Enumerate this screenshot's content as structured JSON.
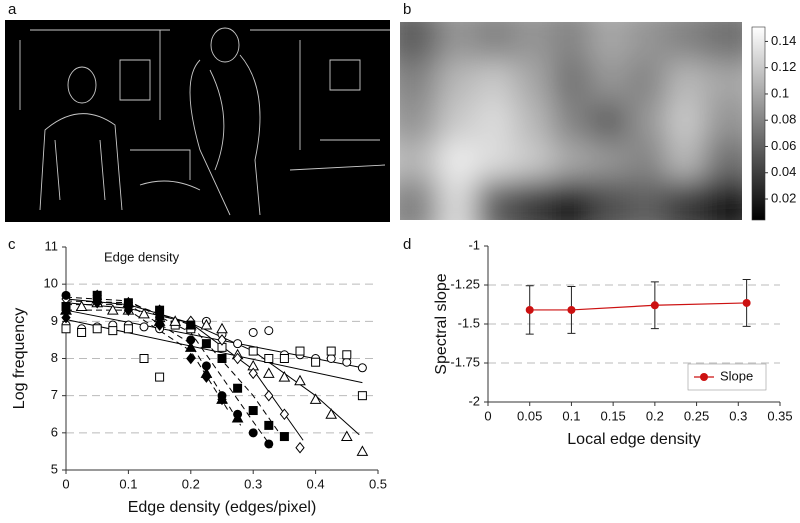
{
  "chart_data": [
    {
      "type": "image",
      "panel": "a"
    },
    {
      "type": "heatmap",
      "panel": "b",
      "values": [
        [
          0.06,
          0.09,
          0.08,
          0.09,
          0.08,
          0.1,
          0.09,
          0.08,
          0.07
        ],
        [
          0.08,
          0.11,
          0.12,
          0.1,
          0.07,
          0.09,
          0.08,
          0.11,
          0.1
        ],
        [
          0.09,
          0.12,
          0.13,
          0.11,
          0.08,
          0.06,
          0.09,
          0.12,
          0.09
        ],
        [
          0.11,
          0.14,
          0.13,
          0.12,
          0.1,
          0.09,
          0.08,
          0.11,
          0.07
        ],
        [
          0.08,
          0.13,
          0.06,
          0.04,
          0.02,
          0.05,
          0.06,
          0.04,
          0.02
        ]
      ],
      "clim": [
        0.004,
        0.151
      ],
      "cticks": [
        0.02,
        0.04,
        0.06,
        0.08,
        0.1,
        0.12,
        0.14
      ]
    },
    {
      "type": "scatter",
      "panel": "c",
      "annotation": "Edge density",
      "xlabel": "Edge density (edges/pixel)",
      "ylabel": "Log frequency",
      "xlim": [
        0,
        0.5
      ],
      "xticks": [
        0,
        0.1,
        0.2,
        0.3,
        0.4,
        0.5
      ],
      "ylim": [
        5,
        11
      ],
      "yticks": [
        5,
        6,
        7,
        8,
        9,
        10,
        11
      ],
      "grid": true,
      "series": [
        {
          "marker": "circle",
          "filled": false,
          "x": [
            0,
            0.025,
            0.05,
            0.075,
            0.1,
            0.125,
            0.15,
            0.2,
            0.225,
            0.25,
            0.275,
            0.3,
            0.325,
            0.35,
            0.375,
            0.4,
            0.425,
            0.45,
            0.475
          ],
          "values": [
            8.9,
            8.8,
            8.85,
            8.9,
            8.9,
            8.85,
            8.8,
            8.9,
            9.0,
            8.65,
            8.4,
            8.7,
            8.75,
            8.1,
            8.1,
            8.0,
            8.0,
            7.9,
            7.75
          ],
          "fit": {
            "x": [
              0,
              0.475
            ],
            "y": [
              9.3,
              7.75
            ]
          }
        },
        {
          "marker": "square",
          "filled": false,
          "x": [
            0,
            0.025,
            0.05,
            0.075,
            0.1,
            0.125,
            0.15,
            0.175,
            0.2,
            0.25,
            0.3,
            0.325,
            0.35,
            0.375,
            0.4,
            0.425,
            0.45,
            0.475
          ],
          "values": [
            8.8,
            8.7,
            8.8,
            8.75,
            8.8,
            8.0,
            7.5,
            8.9,
            8.8,
            8.3,
            8.2,
            8.0,
            8.0,
            8.2,
            7.9,
            8.2,
            8.1,
            7.0
          ],
          "fit": {
            "x": [
              0,
              0.475
            ],
            "y": [
              9.05,
              7.35
            ]
          }
        },
        {
          "marker": "triangle",
          "filled": false,
          "x": [
            0,
            0.025,
            0.05,
            0.075,
            0.1,
            0.125,
            0.15,
            0.175,
            0.2,
            0.225,
            0.25,
            0.275,
            0.3,
            0.325,
            0.35,
            0.375,
            0.4,
            0.425,
            0.45,
            0.475
          ],
          "values": [
            9.3,
            9.4,
            9.5,
            9.3,
            9.3,
            9.2,
            9.1,
            9.0,
            8.9,
            8.9,
            8.8,
            8.1,
            7.8,
            7.6,
            7.5,
            7.4,
            6.9,
            6.5,
            5.9,
            5.5
          ],
          "fit": {
            "x": [
              0,
              0.1,
              0.2,
              0.3,
              0.4,
              0.47
            ],
            "y": [
              9.5,
              9.35,
              8.95,
              8.2,
              7.0,
              5.95
            ]
          }
        },
        {
          "marker": "diamond",
          "filled": false,
          "x": [
            0,
            0.05,
            0.1,
            0.15,
            0.2,
            0.25,
            0.275,
            0.3,
            0.325,
            0.35,
            0.375
          ],
          "values": [
            9.6,
            9.7,
            9.5,
            9.3,
            9.0,
            8.5,
            8.0,
            7.6,
            7.0,
            6.5,
            5.6
          ],
          "fit": {
            "x": [
              0,
              0.1,
              0.2,
              0.3,
              0.38
            ],
            "y": [
              9.6,
              9.45,
              8.95,
              7.7,
              5.8
            ]
          }
        },
        {
          "marker": "diamond",
          "filled": true,
          "x": [
            0,
            0.05,
            0.1,
            0.15,
            0.2,
            0.225,
            0.25
          ],
          "values": [
            9.1,
            9.5,
            9.3,
            8.9,
            8.0,
            7.5,
            6.9
          ],
          "fit": {
            "x": [
              0,
              0.1,
              0.2,
              0.26
            ],
            "y": [
              9.3,
              9.3,
              8.2,
              6.6
            ]
          }
        },
        {
          "marker": "triangle",
          "filled": true,
          "x": [
            0,
            0.05,
            0.1,
            0.15,
            0.2,
            0.225,
            0.25,
            0.275
          ],
          "values": [
            9.3,
            9.6,
            9.5,
            9.0,
            8.3,
            7.6,
            6.9,
            6.4
          ],
          "fit": {
            "x": [
              0,
              0.1,
              0.2,
              0.28
            ],
            "y": [
              9.45,
              9.45,
              8.4,
              6.2
            ]
          }
        },
        {
          "marker": "circle",
          "filled": true,
          "x": [
            0,
            0.05,
            0.1,
            0.15,
            0.2,
            0.225,
            0.25,
            0.275,
            0.3,
            0.325
          ],
          "values": [
            9.7,
            9.6,
            9.4,
            9.1,
            8.5,
            7.8,
            7.0,
            6.5,
            6.0,
            5.7
          ],
          "fit": {
            "x": [
              0,
              0.1,
              0.2,
              0.3,
              0.33
            ],
            "y": [
              9.65,
              9.55,
              8.7,
              6.3,
              5.6
            ]
          }
        },
        {
          "marker": "square",
          "filled": true,
          "x": [
            0,
            0.05,
            0.1,
            0.15,
            0.2,
            0.225,
            0.25,
            0.275,
            0.3,
            0.325,
            0.35
          ],
          "values": [
            9.4,
            9.7,
            9.5,
            9.3,
            8.9,
            8.4,
            8.0,
            7.2,
            6.6,
            6.2,
            5.9
          ],
          "fit": {
            "x": [
              0,
              0.1,
              0.2,
              0.3,
              0.35
            ],
            "y": [
              9.55,
              9.5,
              8.9,
              7.0,
              5.8
            ]
          }
        }
      ]
    },
    {
      "type": "line",
      "panel": "d",
      "xlabel": "Local edge density",
      "ylabel": "Spectral slope",
      "xlim": [
        0,
        0.35
      ],
      "xticks": [
        0,
        0.05,
        0.1,
        0.15,
        0.2,
        0.25,
        0.3,
        0.35
      ],
      "ylim": [
        -2,
        -1
      ],
      "yticks": [
        -2,
        -1.75,
        -1.5,
        -1.25,
        -1
      ],
      "grid": true,
      "legend": "lower right",
      "x": [
        0.05,
        0.1,
        0.2,
        0.31
      ],
      "series": [
        {
          "name": "Slope",
          "color": "#cc1111",
          "values": [
            -1.41,
            -1.41,
            -1.38,
            -1.365
          ],
          "errors": [
            0.155,
            0.15,
            0.15,
            0.15
          ]
        }
      ]
    }
  ]
}
